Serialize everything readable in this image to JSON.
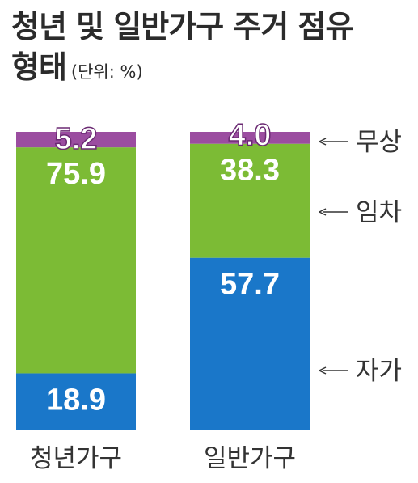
{
  "title_line1": "청년 및 일반가구 주거 점유",
  "title_line2": "형태",
  "unit": "(단위: %)",
  "chart_data": {
    "type": "bar",
    "stacked": true,
    "categories": [
      "청년가구",
      "일반가구"
    ],
    "series": [
      {
        "name": "자가",
        "values": [
          18.9,
          57.7
        ],
        "labels": [
          "18.9",
          "57.7"
        ],
        "color": "#1a77c9"
      },
      {
        "name": "임차",
        "values": [
          75.9,
          38.3
        ],
        "labels": [
          "75.9",
          "38.3"
        ],
        "color": "#7cbb35"
      },
      {
        "name": "무상",
        "values": [
          5.2,
          4.0
        ],
        "labels": [
          "5.2",
          "4.0"
        ],
        "color": "#9b4da0"
      }
    ],
    "legend_placement": "right",
    "ylim": [
      0,
      100
    ]
  }
}
